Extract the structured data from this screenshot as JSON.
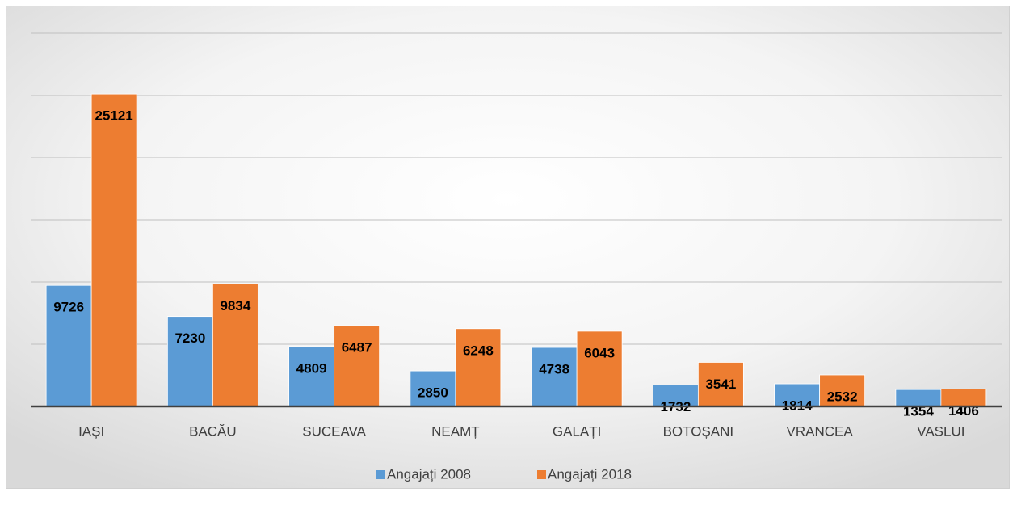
{
  "chart_data": {
    "type": "bar",
    "categories": [
      "IAȘI",
      "BACĂU",
      "SUCEAVA",
      "NEAMȚ",
      "GALAȚI",
      "BOTOȘANI",
      "VRANCEA",
      "VASLUI"
    ],
    "series": [
      {
        "name": "Angajați 2008",
        "color": "#5b9bd5",
        "values": [
          9726,
          7230,
          4809,
          2850,
          4738,
          1732,
          1814,
          1354
        ]
      },
      {
        "name": "Angajați 2018",
        "color": "#ed7d31",
        "values": [
          25121,
          9834,
          6487,
          6248,
          6043,
          3541,
          2532,
          1406
        ]
      }
    ],
    "ylim": [
      0,
      30000
    ],
    "yticks": [
      0,
      5000,
      10000,
      15000,
      20000,
      25000,
      30000
    ],
    "grid": true,
    "legend": "bottom"
  }
}
